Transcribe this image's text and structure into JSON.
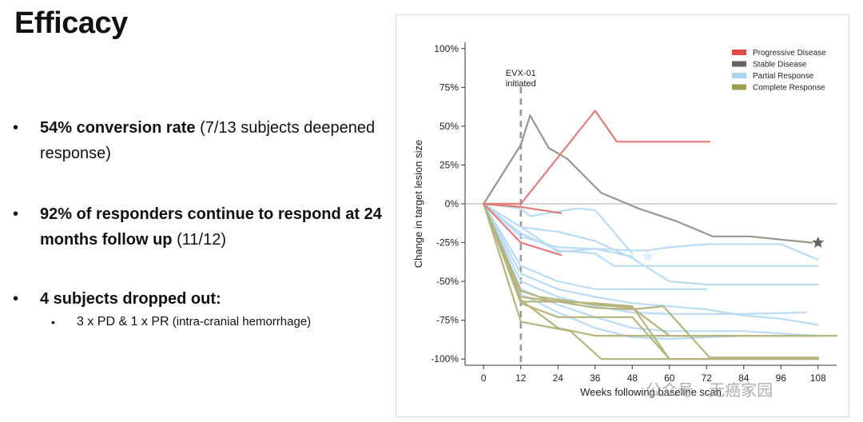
{
  "slide": {
    "title": "Efficacy",
    "bullets": [
      {
        "bold": "54% conversion rate",
        "rest": " (7/13 subjects deepened response)"
      },
      {
        "bold": "92% of responders continue to respond at 24 months follow up",
        "rest": " (11/12)"
      },
      {
        "bold": "4 subjects dropped out:",
        "rest": ""
      }
    ],
    "sub_bullet": {
      "main": "3 x PD & 1 x PR",
      "small": " (intra-cranial hemorrhage)"
    }
  },
  "watermark": "公众号 · 无癌家园",
  "colors": {
    "progressive": "#e07c78",
    "stable": "#9a968c",
    "partial": "#b9dcf4",
    "complete": "#b5b47f",
    "legend_progressive": "#e04b45",
    "legend_stable": "#6a655b",
    "legend_partial": "#a9d3f2",
    "legend_complete": "#9e9d4f"
  },
  "chart_data": {
    "type": "line",
    "xlabel": "Weeks following baseline scan",
    "ylabel": "Change in target lesion size",
    "xlim": [
      -6,
      114
    ],
    "ylim": [
      -104,
      104
    ],
    "xticks": [
      0,
      12,
      24,
      36,
      48,
      60,
      72,
      84,
      96,
      108
    ],
    "yticks": [
      100,
      75,
      50,
      25,
      0,
      -25,
      -50,
      -75,
      -100
    ],
    "ytick_labels": [
      "100%",
      "75%",
      "50%",
      "25%",
      "0%",
      "-25%",
      "-50%",
      "-75%",
      "-100%"
    ],
    "grid": false,
    "zero_line": true,
    "legend_placement": "top-right",
    "legend": [
      {
        "label": "Progressive Disease",
        "group": "progressive"
      },
      {
        "label": "Stable Disease",
        "group": "stable"
      },
      {
        "label": "Partial Response",
        "group": "partial"
      },
      {
        "label": "Complete Response",
        "group": "complete"
      }
    ],
    "annotation": {
      "x": 12,
      "line1": "EVX-01",
      "line2": "initiated"
    },
    "series": [
      {
        "group": "progressive",
        "points": [
          [
            0,
            0
          ],
          [
            12,
            0
          ],
          [
            36,
            60
          ],
          [
            43,
            40
          ],
          [
            73,
            40
          ]
        ]
      },
      {
        "group": "progressive",
        "points": [
          [
            0,
            0
          ],
          [
            12,
            -2
          ],
          [
            25,
            -6
          ]
        ]
      },
      {
        "group": "progressive",
        "points": [
          [
            0,
            0
          ],
          [
            12,
            -25
          ],
          [
            25,
            -33
          ]
        ]
      },
      {
        "group": "stable",
        "points": [
          [
            0,
            0
          ],
          [
            12,
            38
          ],
          [
            15,
            57
          ],
          [
            21,
            36
          ],
          [
            27,
            29
          ],
          [
            38,
            7
          ],
          [
            50,
            -3
          ],
          [
            62,
            -11
          ],
          [
            74,
            -21
          ],
          [
            86,
            -21
          ],
          [
            106,
            -25
          ]
        ]
      },
      {
        "group": "partial",
        "points": [
          [
            0,
            0
          ],
          [
            12,
            -3
          ],
          [
            15,
            -8
          ],
          [
            30,
            -3
          ],
          [
            36,
            -4
          ],
          [
            48,
            -32
          ]
        ]
      },
      {
        "group": "partial",
        "points": [
          [
            0,
            0
          ],
          [
            12,
            -15
          ],
          [
            24,
            -31
          ],
          [
            36,
            -29
          ],
          [
            48,
            -30
          ],
          [
            53,
            -30
          ],
          [
            60,
            -28
          ],
          [
            72,
            -26
          ],
          [
            96,
            -26
          ],
          [
            108,
            -36
          ]
        ]
      },
      {
        "group": "partial",
        "points": [
          [
            0,
            0
          ],
          [
            12,
            -19
          ],
          [
            24,
            -30
          ],
          [
            36,
            -32
          ],
          [
            42,
            -40
          ],
          [
            108,
            -40
          ]
        ]
      },
      {
        "group": "partial",
        "points": [
          [
            0,
            0
          ],
          [
            12,
            -21
          ],
          [
            24,
            -28
          ],
          [
            36,
            -29
          ],
          [
            48,
            -34
          ]
        ]
      },
      {
        "group": "partial",
        "points": [
          [
            0,
            0
          ],
          [
            12,
            -40
          ],
          [
            24,
            -50
          ],
          [
            36,
            -55
          ],
          [
            60,
            -55
          ],
          [
            72,
            -55
          ]
        ]
      },
      {
        "group": "partial",
        "points": [
          [
            0,
            0
          ],
          [
            12,
            -45
          ],
          [
            24,
            -55
          ],
          [
            36,
            -60
          ],
          [
            48,
            -64
          ],
          [
            60,
            -66
          ],
          [
            72,
            -68
          ],
          [
            84,
            -72
          ],
          [
            96,
            -74
          ],
          [
            108,
            -78
          ]
        ]
      },
      {
        "group": "partial",
        "points": [
          [
            0,
            0
          ],
          [
            12,
            -50
          ],
          [
            24,
            -60
          ],
          [
            36,
            -66
          ],
          [
            48,
            -70
          ],
          [
            60,
            -71
          ],
          [
            84,
            -71
          ],
          [
            104,
            -70
          ]
        ]
      },
      {
        "group": "partial",
        "points": [
          [
            0,
            0
          ],
          [
            12,
            -55
          ],
          [
            24,
            -65
          ],
          [
            36,
            -73
          ],
          [
            48,
            -80
          ],
          [
            60,
            -82
          ],
          [
            84,
            -82
          ],
          [
            108,
            -85
          ]
        ]
      },
      {
        "group": "partial",
        "points": [
          [
            0,
            0
          ],
          [
            12,
            -15
          ],
          [
            24,
            -18
          ],
          [
            36,
            -24
          ],
          [
            48,
            -35
          ],
          [
            60,
            -50
          ],
          [
            72,
            -52
          ],
          [
            84,
            -52
          ],
          [
            108,
            -52
          ]
        ]
      },
      {
        "group": "partial",
        "points": [
          [
            0,
            0
          ],
          [
            12,
            -58
          ],
          [
            24,
            -70
          ],
          [
            36,
            -80
          ],
          [
            48,
            -86
          ],
          [
            60,
            -87
          ],
          [
            72,
            -86
          ],
          [
            84,
            -85
          ]
        ]
      },
      {
        "group": "complete",
        "points": [
          [
            0,
            0
          ],
          [
            12,
            -60
          ],
          [
            24,
            -63
          ],
          [
            36,
            -67
          ],
          [
            48,
            -68
          ],
          [
            58,
            -66
          ],
          [
            73,
            -99
          ],
          [
            108,
            -99
          ]
        ]
      },
      {
        "group": "complete",
        "points": [
          [
            0,
            0
          ],
          [
            12,
            -63
          ],
          [
            24,
            -63
          ],
          [
            36,
            -64
          ],
          [
            48,
            -66
          ],
          [
            60,
            -100
          ],
          [
            108,
            -100
          ]
        ]
      },
      {
        "group": "complete",
        "points": [
          [
            0,
            0
          ],
          [
            12,
            -64
          ],
          [
            24,
            -73
          ],
          [
            48,
            -73
          ],
          [
            60,
            -100
          ],
          [
            108,
            -100
          ]
        ]
      },
      {
        "group": "complete",
        "points": [
          [
            0,
            0
          ],
          [
            12,
            -62
          ],
          [
            24,
            -80
          ],
          [
            36,
            -85
          ],
          [
            108,
            -85
          ],
          [
            114,
            -85
          ]
        ]
      },
      {
        "group": "complete",
        "points": [
          [
            0,
            0
          ],
          [
            12,
            -76
          ],
          [
            28,
            -82
          ],
          [
            38,
            -100
          ],
          [
            108,
            -100
          ]
        ]
      },
      {
        "group": "complete",
        "points": [
          [
            0,
            0
          ],
          [
            12,
            -56
          ],
          [
            18,
            -60
          ],
          [
            36,
            -65
          ],
          [
            48,
            -67
          ],
          [
            60,
            -85
          ],
          [
            108,
            -85
          ]
        ]
      }
    ],
    "stars": [
      {
        "group": "stable",
        "x": 108,
        "y": -25
      },
      {
        "group": "partial",
        "x": 53,
        "y": -34
      }
    ]
  }
}
